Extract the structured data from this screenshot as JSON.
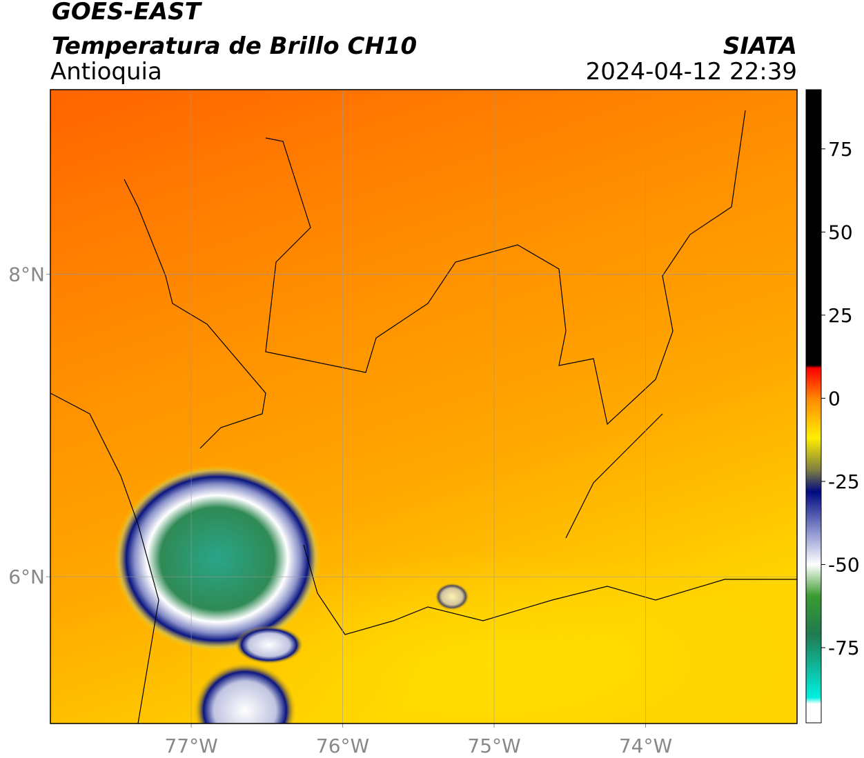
{
  "header": {
    "title": "GOES-EAST",
    "subtitle": "Temperatura de Brillo CH10",
    "region": "Antioquia",
    "source": "SIATA",
    "datetime": "2024-04-12 22:39"
  },
  "map": {
    "lon_range": [
      -77.93,
      -73.0
    ],
    "lat_range": [
      5.03,
      9.22
    ],
    "lon_ticks": [
      {
        "value": -77,
        "label": "77°W"
      },
      {
        "value": -76,
        "label": "76°W"
      },
      {
        "value": -75,
        "label": "75°W"
      },
      {
        "value": -74,
        "label": "74°W"
      }
    ],
    "lat_ticks": [
      {
        "value": 8,
        "label": "8°N"
      },
      {
        "value": 6,
        "label": "6°N"
      }
    ]
  },
  "colorbar": {
    "lim": [
      -97.6,
      92.8
    ],
    "ticks": [
      75,
      50,
      25,
      0,
      -25,
      -50,
      -75
    ]
  }
}
